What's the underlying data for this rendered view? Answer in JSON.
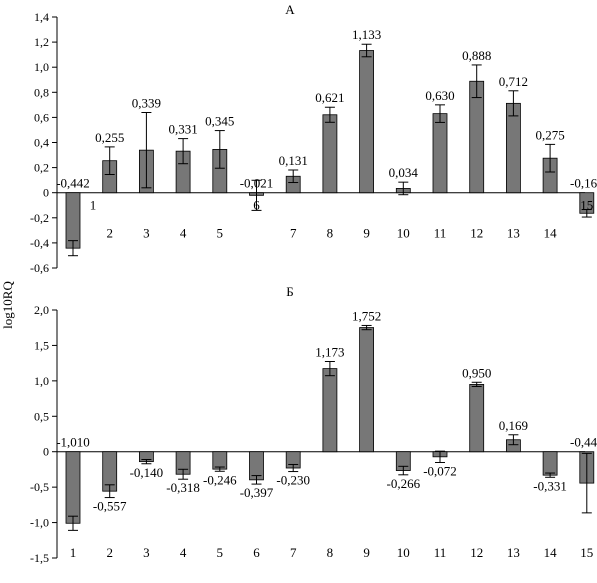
{
  "colors": {
    "bar": "#777777",
    "bar_stroke": "#000000",
    "axis": "#000000"
  },
  "y_axis_label": "log10RQ",
  "chart_data": [
    {
      "type": "bar",
      "title": "А",
      "categories": [
        "1",
        "2",
        "3",
        "4",
        "5",
        "6",
        "7",
        "8",
        "9",
        "10",
        "11",
        "12",
        "13",
        "14",
        "15"
      ],
      "values": [
        -0.442,
        0.255,
        0.339,
        0.331,
        0.345,
        -0.021,
        0.131,
        0.621,
        1.133,
        0.034,
        0.63,
        0.888,
        0.712,
        0.275,
        -0.164
      ],
      "value_labels": [
        "-0,442",
        "0,255",
        "0,339",
        "0,331",
        "0,345",
        "-0,021",
        "0,131",
        "0,621",
        "1,133",
        "0,034",
        "0,630",
        "0,888",
        "0,712",
        "0,275",
        "-0,164"
      ],
      "error": [
        0.06,
        0.11,
        0.3,
        0.1,
        0.15,
        0.12,
        0.05,
        0.06,
        0.05,
        0.05,
        0.07,
        0.13,
        0.1,
        0.11,
        0.03
      ],
      "ylim": [
        -0.6,
        1.4
      ],
      "yticks": [
        -0.6,
        -0.4,
        -0.2,
        0,
        0.2,
        0.4,
        0.6,
        0.8,
        1.0,
        1.2,
        1.4
      ],
      "ytick_labels": [
        "-0,6",
        "-0,4",
        "-0,2",
        "0",
        "0,2",
        "0,4",
        "0,6",
        "0,8",
        "1,0",
        "1,2",
        "1,4"
      ],
      "ylabel": "log10RQ",
      "xlabel": "",
      "grid": false,
      "category_labels_position": "near_axis"
    },
    {
      "type": "bar",
      "title": "Б",
      "categories": [
        "1",
        "2",
        "3",
        "4",
        "5",
        "6",
        "7",
        "8",
        "9",
        "10",
        "11",
        "12",
        "13",
        "14",
        "15"
      ],
      "values": [
        -1.01,
        -0.557,
        -0.14,
        -0.318,
        -0.246,
        -0.397,
        -0.23,
        1.173,
        1.752,
        -0.266,
        -0.072,
        0.95,
        0.169,
        -0.331,
        -0.443
      ],
      "value_labels": [
        "-1,010",
        "-0,557",
        "-0,140",
        "-0,318",
        "-0,246",
        "-0,397",
        "-0,230",
        "1,173",
        "1,752",
        "-0,266",
        "-0,072",
        "0,950",
        "0,169",
        "-0,331",
        "-0,443"
      ],
      "error": [
        0.1,
        0.09,
        0.03,
        0.07,
        0.03,
        0.06,
        0.05,
        0.1,
        0.03,
        0.06,
        0.08,
        0.03,
        0.07,
        0.03,
        0.42
      ],
      "ylim": [
        -1.5,
        2.0
      ],
      "yticks": [
        -1.5,
        -1.0,
        -0.5,
        0,
        0.5,
        1.0,
        1.5,
        2.0
      ],
      "ytick_labels": [
        "-1,5",
        "-1,0",
        "-0,5",
        "0",
        "0,5",
        "1,0",
        "1,5",
        "2,0"
      ],
      "ylabel": "",
      "xlabel": "",
      "grid": false,
      "category_labels_position": "bottom"
    }
  ]
}
